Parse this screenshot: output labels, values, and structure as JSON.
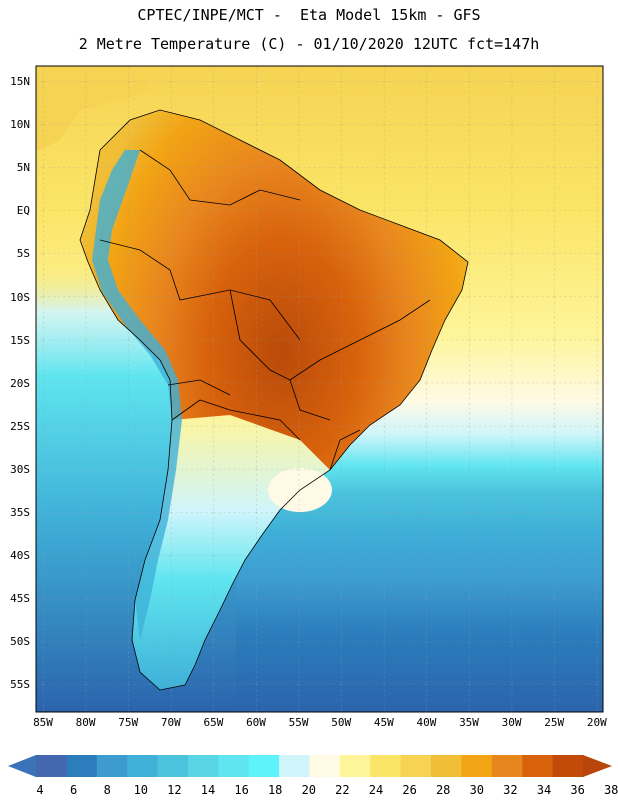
{
  "header": {
    "line1": "CPTEC/INPE/MCT -  Eta Model 15km - GFS",
    "line2": "2 Metre Temperature (C) - 01/10/2020 12UTC fct=147h"
  },
  "map": {
    "lat_labels": [
      "15N",
      "10N",
      "5N",
      "EQ",
      "5S",
      "10S",
      "15S",
      "20S",
      "25S",
      "30S",
      "35S",
      "40S",
      "45S",
      "50S",
      "55S"
    ],
    "lon_labels": [
      "85W",
      "80W",
      "75W",
      "70W",
      "65W",
      "60W",
      "55W",
      "50W",
      "45W",
      "40W",
      "35W",
      "30W",
      "25W",
      "20W"
    ]
  },
  "colorbar": {
    "labels": [
      "4",
      "6",
      "8",
      "10",
      "12",
      "14",
      "16",
      "18",
      "20",
      "22",
      "24",
      "26",
      "28",
      "30",
      "32",
      "34",
      "36",
      "38"
    ],
    "colors": [
      "#4468b0",
      "#2b7dbb",
      "#3d9bd0",
      "#3fb0d8",
      "#4cc3dd",
      "#58d6e6",
      "#5fe5ef",
      "#60f2fb",
      "#cff5fb",
      "#fefae6",
      "#fef59b",
      "#fbe566",
      "#f6d353",
      "#f0be37",
      "#f2a414",
      "#e8861e",
      "#d8620c",
      "#c24b09"
    ],
    "low_color": "#3a73b8",
    "high_color": "#b8460a"
  }
}
